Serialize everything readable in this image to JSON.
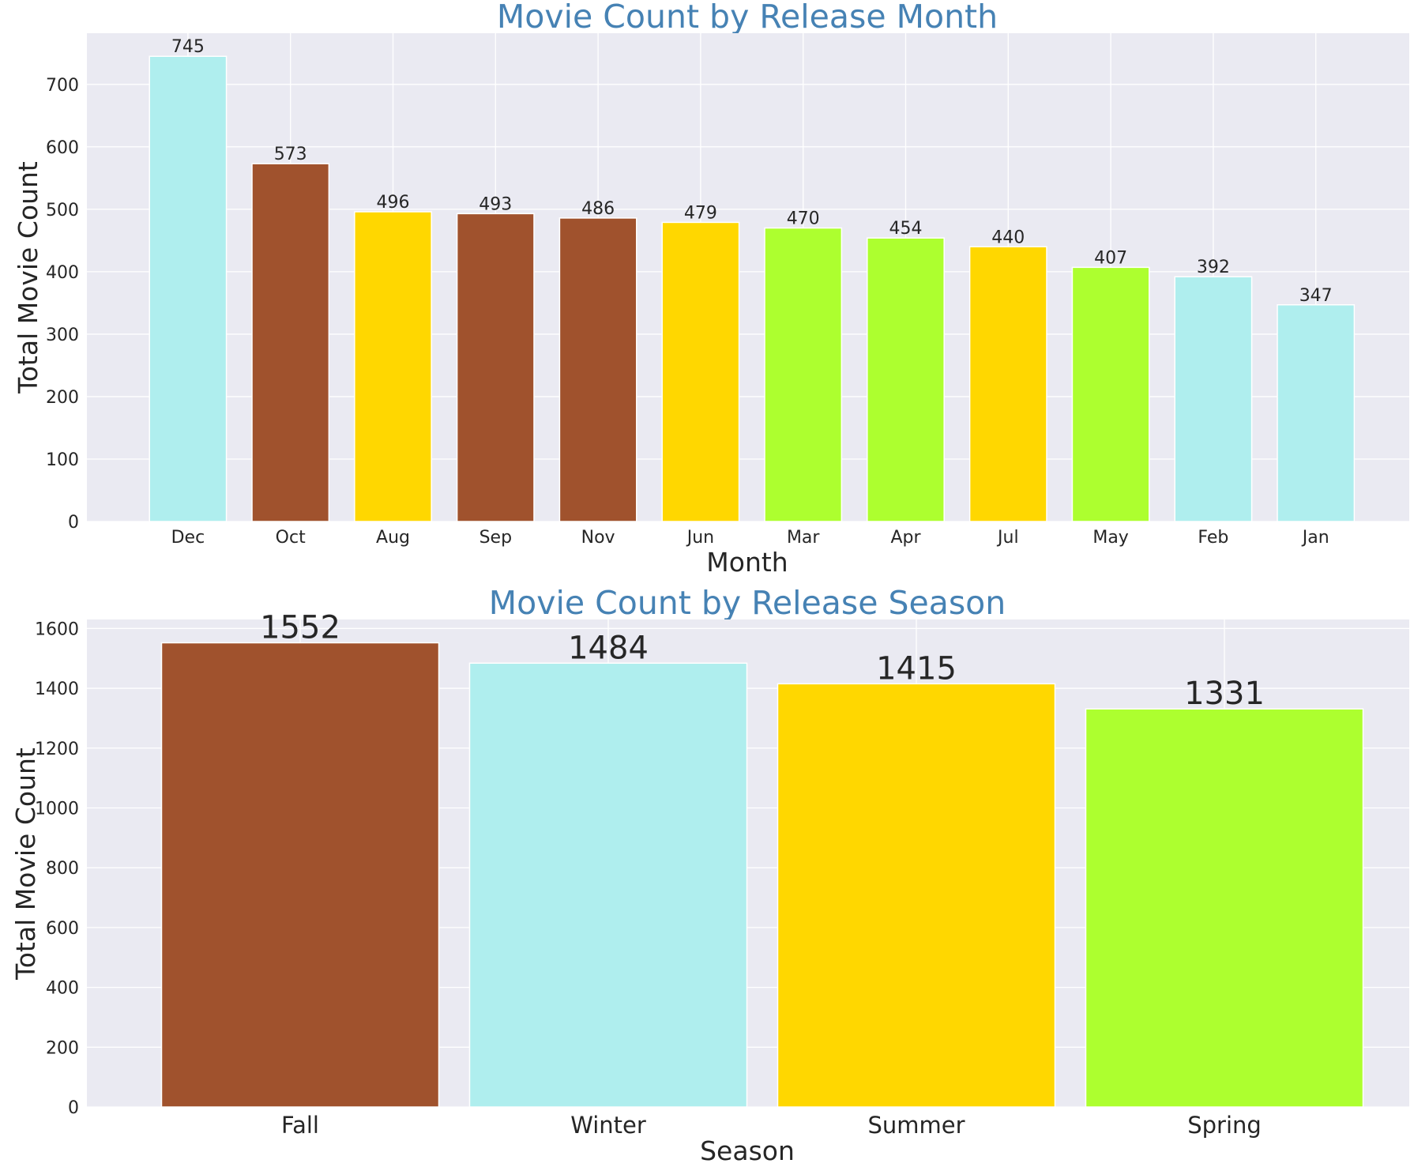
{
  "chart_data": [
    {
      "type": "bar",
      "title": "Movie Count by Release Month",
      "xlabel": "Month",
      "ylabel": "Total Movie Count",
      "categories": [
        "Dec",
        "Oct",
        "Aug",
        "Sep",
        "Nov",
        "Jun",
        "Mar",
        "Apr",
        "Jul",
        "May",
        "Feb",
        "Jan"
      ],
      "values": [
        745,
        573,
        496,
        493,
        486,
        479,
        470,
        454,
        440,
        407,
        392,
        347
      ],
      "colors": [
        "#afeeee",
        "#a0522d",
        "#ffd700",
        "#a0522d",
        "#a0522d",
        "#ffd700",
        "#adff2f",
        "#adff2f",
        "#ffd700",
        "#adff2f",
        "#afeeee",
        "#afeeee"
      ],
      "ylim": [
        0,
        782
      ],
      "yticks": [
        0,
        100,
        200,
        300,
        400,
        500,
        600,
        700
      ],
      "grid": true,
      "legend": "none"
    },
    {
      "type": "bar",
      "title": "Movie Count by Release Season",
      "xlabel": "Season",
      "ylabel": "Total Movie Count",
      "categories": [
        "Fall",
        "Winter",
        "Summer",
        "Spring"
      ],
      "values": [
        1552,
        1484,
        1415,
        1331
      ],
      "colors": [
        "#a0522d",
        "#afeeee",
        "#ffd700",
        "#adff2f"
      ],
      "ylim": [
        0,
        1630
      ],
      "yticks": [
        0,
        200,
        400,
        600,
        800,
        1000,
        1200,
        1400,
        1600
      ],
      "grid": true,
      "legend": "none"
    }
  ]
}
